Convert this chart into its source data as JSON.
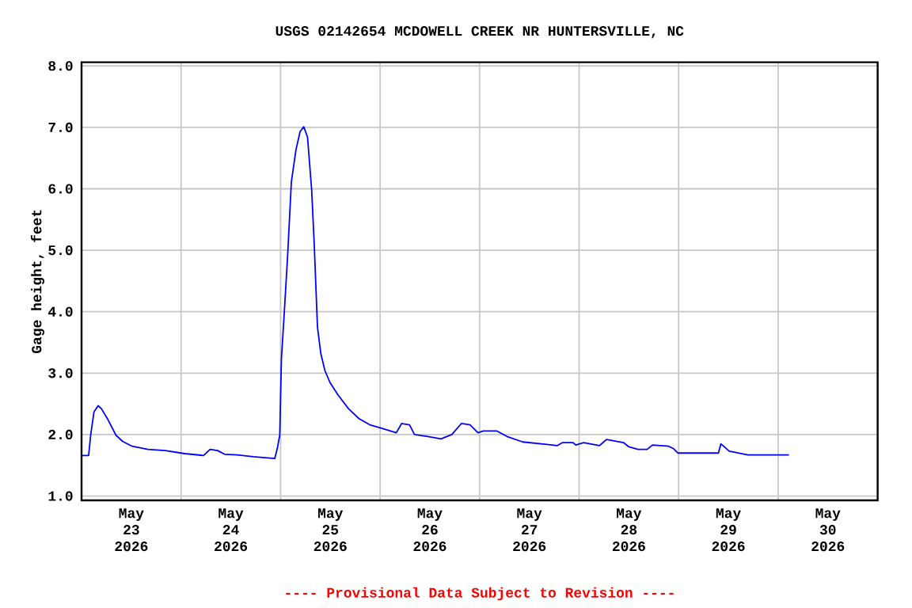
{
  "chart_data": {
    "type": "line",
    "title": "USGS 02142654 MCDOWELL CREEK NR HUNTERSVILLE, NC",
    "ylabel": "Gage height, feet",
    "annotations": [
      "---- Provisional Data Subject to Revision ----"
    ],
    "x": [
      "2026-05-23T00:00",
      "2026-05-23T01:42",
      "2026-05-23T02:12",
      "2026-05-23T03:00",
      "2026-05-23T04:00",
      "2026-05-23T04:48",
      "2026-05-23T06:24",
      "2026-05-23T08:18",
      "2026-05-23T09:54",
      "2026-05-23T12:12",
      "2026-05-23T16:00",
      "2026-05-23T20:12",
      "2026-05-24T00:54",
      "2026-05-24T05:24",
      "2026-05-24T07:00",
      "2026-05-24T08:48",
      "2026-05-24T10:30",
      "2026-05-24T13:36",
      "2026-05-24T17:24",
      "2026-05-24T22:36",
      "2026-05-24T23:12",
      "2026-05-24T23:48",
      "2026-05-25T00:12",
      "2026-05-25T00:48",
      "2026-05-25T01:42",
      "2026-05-25T02:36",
      "2026-05-25T03:42",
      "2026-05-25T04:42",
      "2026-05-25T05:36",
      "2026-05-25T06:30",
      "2026-05-25T07:30",
      "2026-05-25T08:06",
      "2026-05-25T08:54",
      "2026-05-25T09:42",
      "2026-05-25T10:42",
      "2026-05-25T11:54",
      "2026-05-25T13:48",
      "2026-05-25T16:24",
      "2026-05-25T18:54",
      "2026-05-25T21:30",
      "2026-05-26T00:00",
      "2026-05-26T03:54",
      "2026-05-26T05:12",
      "2026-05-26T07:06",
      "2026-05-26T08:18",
      "2026-05-26T11:30",
      "2026-05-26T14:42",
      "2026-05-26T17:18",
      "2026-05-26T19:36",
      "2026-05-26T21:42",
      "2026-05-26T23:36",
      "2026-05-27T00:54",
      "2026-05-27T04:06",
      "2026-05-27T06:36",
      "2026-05-27T10:24",
      "2026-05-27T16:12",
      "2026-05-27T18:42",
      "2026-05-27T20:00",
      "2026-05-27T22:30",
      "2026-05-27T23:12",
      "2026-05-28T01:06",
      "2026-05-28T04:54",
      "2026-05-28T06:36",
      "2026-05-28T10:42",
      "2026-05-28T12:00",
      "2026-05-28T14:12",
      "2026-05-28T16:24",
      "2026-05-28T17:42",
      "2026-05-28T21:36",
      "2026-05-28T22:48",
      "2026-05-28T23:48",
      "2026-05-29T09:36",
      "2026-05-29T10:12",
      "2026-05-29T12:12",
      "2026-05-29T16:42",
      "2026-05-30T02:36"
    ],
    "series": [
      {
        "color": "#0000ff",
        "values": [
          1.66,
          1.66,
          1.99,
          2.37,
          2.47,
          2.42,
          2.24,
          1.99,
          1.89,
          1.81,
          1.76,
          1.74,
          1.69,
          1.66,
          1.76,
          1.74,
          1.68,
          1.67,
          1.64,
          1.61,
          1.77,
          1.99,
          3.23,
          3.88,
          4.91,
          6.11,
          6.63,
          6.93,
          7.01,
          6.84,
          5.98,
          5.12,
          3.75,
          3.32,
          3.04,
          2.85,
          2.65,
          2.42,
          2.26,
          2.16,
          2.11,
          2.03,
          2.18,
          2.16,
          2.0,
          1.97,
          1.93,
          2.0,
          2.18,
          2.16,
          2.03,
          2.06,
          2.06,
          1.97,
          1.88,
          1.84,
          1.82,
          1.87,
          1.87,
          1.83,
          1.87,
          1.82,
          1.92,
          1.87,
          1.8,
          1.76,
          1.76,
          1.83,
          1.81,
          1.77,
          1.7,
          1.7,
          1.85,
          1.73,
          1.67,
          1.67
        ]
      }
    ],
    "xlim": [
      "2026-05-23T00:00",
      "2026-05-31T00:00"
    ],
    "xticks": [
      {
        "value": "2026-05-23T12:00",
        "label": "May 23 2026"
      },
      {
        "value": "2026-05-24T12:00",
        "label": "May 24 2026"
      },
      {
        "value": "2026-05-25T12:00",
        "label": "May 25 2026"
      },
      {
        "value": "2026-05-26T12:00",
        "label": "May 26 2026"
      },
      {
        "value": "2026-05-27T12:00",
        "label": "May 27 2026"
      },
      {
        "value": "2026-05-28T12:00",
        "label": "May 28 2026"
      },
      {
        "value": "2026-05-29T12:00",
        "label": "May 29 2026"
      },
      {
        "value": "2026-05-30T12:00",
        "label": "May 30 2026"
      },
      {
        "value": "2026-05-24T00:00",
        "label": null
      },
      {
        "value": "2026-05-25T00:00",
        "label": null
      },
      {
        "value": "2026-05-26T00:00",
        "label": null
      },
      {
        "value": "2026-05-27T00:00",
        "label": null
      },
      {
        "value": "2026-05-28T00:00",
        "label": null
      },
      {
        "value": "2026-05-29T00:00",
        "label": null
      },
      {
        "value": "2026-05-30T00:00",
        "label": null
      }
    ],
    "ylim": [
      0.93,
      8.06
    ],
    "yticks": [
      {
        "value": 1,
        "label": "1.0"
      },
      {
        "value": 2,
        "label": "2.0"
      },
      {
        "value": 3,
        "label": "3.0"
      },
      {
        "value": 4,
        "label": "4.0"
      },
      {
        "value": 5,
        "label": "5.0"
      },
      {
        "value": 6,
        "label": "6.0"
      },
      {
        "value": 7,
        "label": "7.0"
      },
      {
        "value": 8,
        "label": "8.0"
      }
    ],
    "grid": true,
    "marker": "none",
    "line_style": "solid"
  }
}
